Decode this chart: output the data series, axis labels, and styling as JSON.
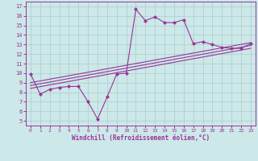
{
  "title": "",
  "xlabel": "Windchill (Refroidissement éolien,°C)",
  "ylabel": "",
  "bg_color": "#cce8e8",
  "line_color": "#993399",
  "grid_color": "#aacccc",
  "xlim": [
    -0.5,
    23.5
  ],
  "ylim": [
    4.5,
    17.5
  ],
  "xticks": [
    0,
    1,
    2,
    3,
    4,
    5,
    6,
    7,
    8,
    9,
    10,
    11,
    12,
    13,
    14,
    15,
    16,
    17,
    18,
    19,
    20,
    21,
    22,
    23
  ],
  "yticks": [
    5,
    6,
    7,
    8,
    9,
    10,
    11,
    12,
    13,
    14,
    15,
    16,
    17
  ],
  "curve_x": [
    0,
    1,
    2,
    3,
    4,
    5,
    6,
    7,
    8,
    9,
    10,
    11,
    12,
    13,
    14,
    15,
    16,
    17,
    18,
    19,
    20,
    21,
    22,
    23
  ],
  "curve_y": [
    9.9,
    7.8,
    8.3,
    8.5,
    8.6,
    8.6,
    7.0,
    5.2,
    7.5,
    9.9,
    10.0,
    16.7,
    15.5,
    15.9,
    15.3,
    15.3,
    15.6,
    13.1,
    13.3,
    13.0,
    12.7,
    12.6,
    12.6,
    13.1
  ],
  "line1_x": [
    0,
    23
  ],
  "line1_y": [
    8.4,
    12.6
  ],
  "line2_x": [
    0,
    23
  ],
  "line2_y": [
    8.7,
    12.9
  ],
  "line3_x": [
    0,
    23
  ],
  "line3_y": [
    9.0,
    13.2
  ]
}
